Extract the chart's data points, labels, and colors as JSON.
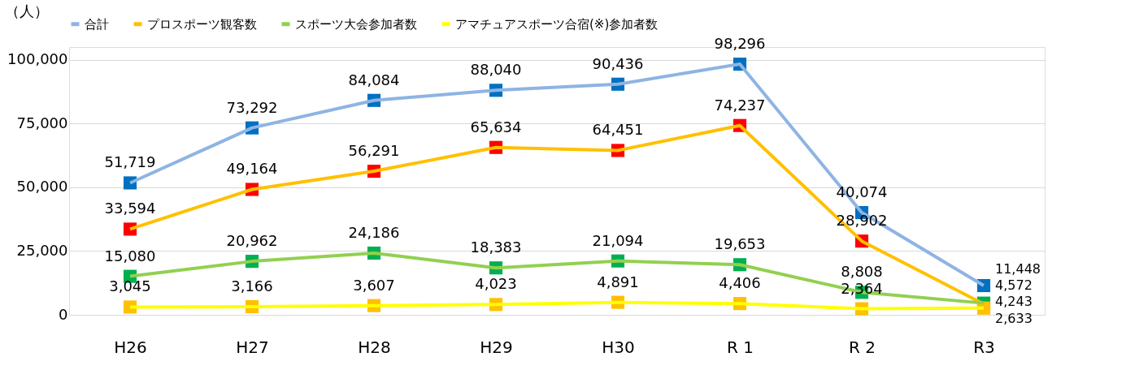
{
  "chart_data": {
    "type": "line",
    "ylabel": "（人）",
    "categories": [
      "H26",
      "H27",
      "H28",
      "H29",
      "H30",
      "R 1",
      "R 2",
      "R3"
    ],
    "series": [
      {
        "name": "合計",
        "color": "#8eb4e3",
        "colors": [
          "#0070c0",
          "#0070c0",
          "#0070c0",
          "#0070c0",
          "#0070c0",
          "#0070c0",
          "#0070c0",
          "#0070c0"
        ],
        "values": [
          51719,
          73292,
          84084,
          88040,
          90436,
          98296,
          40074,
          11448
        ],
        "value_labels": [
          "51,719",
          "73,292",
          "84,084",
          "88,040",
          "90,436",
          "98,296",
          "40,074",
          "11,448"
        ]
      },
      {
        "name": "プロスポーツ観客数",
        "color": "#ffc000",
        "colors": [
          "#ff0000",
          "#ff0000",
          "#ff0000",
          "#ff0000",
          "#ff0000",
          "#ff0000",
          "#ff0000",
          "#ff0000"
        ],
        "values": [
          33594,
          49164,
          56291,
          65634,
          64451,
          74237,
          28902,
          4243
        ],
        "value_labels": [
          "33,594",
          "49,164",
          "56,291",
          "65,634",
          "64,451",
          "74,237",
          "28,902",
          "4,243"
        ]
      },
      {
        "name": "スポーツ大会参加者数",
        "color": "#92d050",
        "colors": [
          "#00b050",
          "#00b050",
          "#00b050",
          "#00b050",
          "#00b050",
          "#00b050",
          "#00b050",
          "#00b050"
        ],
        "values": [
          15080,
          20962,
          24186,
          18383,
          21094,
          19653,
          8808,
          4572
        ],
        "value_labels": [
          "15,080",
          "20,962",
          "24,186",
          "18,383",
          "21,094",
          "19,653",
          "8,808",
          "4,572"
        ]
      },
      {
        "name": "アマチュアスポーツ合宿(※)参加者数",
        "color": "#ffff00",
        "colors": [
          "#ffc000",
          "#ffc000",
          "#ffc000",
          "#ffc000",
          "#ffc000",
          "#ffc000",
          "#ffc000",
          "#ffc000"
        ],
        "values": [
          3045,
          3166,
          3607,
          4023,
          4891,
          4406,
          2364,
          2633
        ],
        "value_labels": [
          "3,045",
          "3,166",
          "3,607",
          "4,023",
          "4,891",
          "4,406",
          "2,364",
          "2,633"
        ]
      }
    ],
    "ylim": [
      0,
      105000
    ],
    "yticks": [
      {
        "value": 0,
        "label": "0"
      },
      {
        "value": 25000,
        "label": "25,000"
      },
      {
        "value": 50000,
        "label": "50,000"
      },
      {
        "value": 75000,
        "label": "75,000"
      },
      {
        "value": 100000,
        "label": "100,000"
      }
    ],
    "grid": "y",
    "legend": "top",
    "marker": "square",
    "line_style": "solid"
  }
}
